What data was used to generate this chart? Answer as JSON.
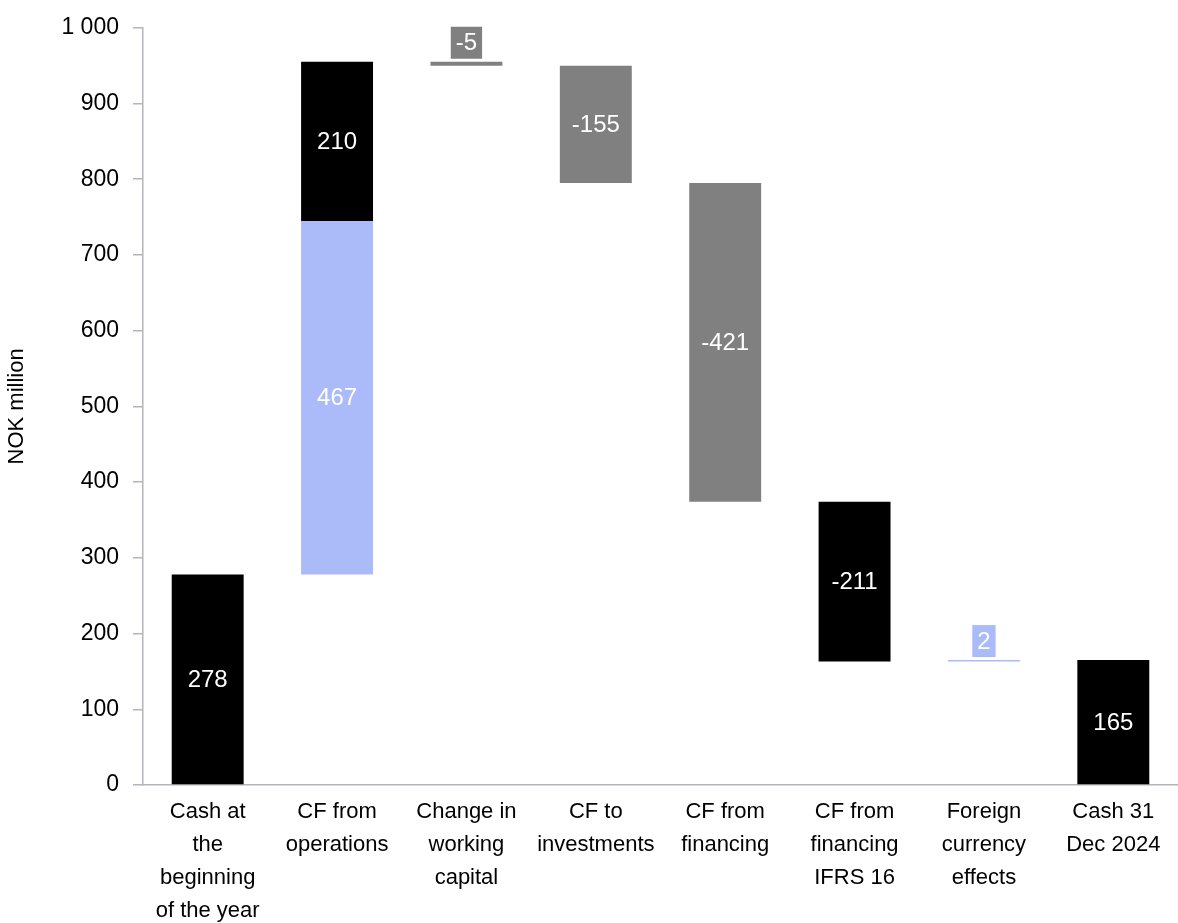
{
  "chart_data": {
    "type": "bar",
    "ylabel": "NOK million",
    "categories": [
      "Cash at the beginning of the year",
      "CF from operations",
      "Change in working capital",
      "CF to investments",
      "CF from financing",
      "CF from financing IFRS 16",
      "Foreign currency effects",
      "Cash 31 Dec 2024"
    ],
    "ylim": [
      0,
      1000
    ],
    "yticks": [
      0,
      100,
      200,
      300,
      400,
      500,
      600,
      700,
      800,
      900,
      {
        "value": 1000,
        "label": "1 000"
      }
    ],
    "data_labels": true,
    "legend": false,
    "series": [
      {
        "color": "#000000",
        "values": [
          278,
          null,
          null,
          null,
          null,
          null,
          null,
          165
        ],
        "base": [
          0,
          null,
          null,
          null,
          null,
          null,
          null,
          0
        ]
      },
      {
        "color": "#abbbfa",
        "values": [
          null,
          467,
          null,
          null,
          null,
          null,
          2,
          null
        ],
        "base": [
          null,
          278,
          null,
          null,
          null,
          null,
          163,
          null
        ]
      },
      {
        "color": "#000000",
        "values": [
          null,
          210,
          null,
          null,
          null,
          -211,
          null,
          null
        ],
        "base": [
          null,
          745,
          null,
          null,
          null,
          374,
          null,
          null
        ]
      },
      {
        "color": "#808080",
        "values": [
          null,
          null,
          -5,
          -155,
          -421,
          null,
          null,
          null
        ],
        "base": [
          null,
          null,
          955,
          950,
          795,
          null,
          null,
          null
        ]
      }
    ]
  }
}
